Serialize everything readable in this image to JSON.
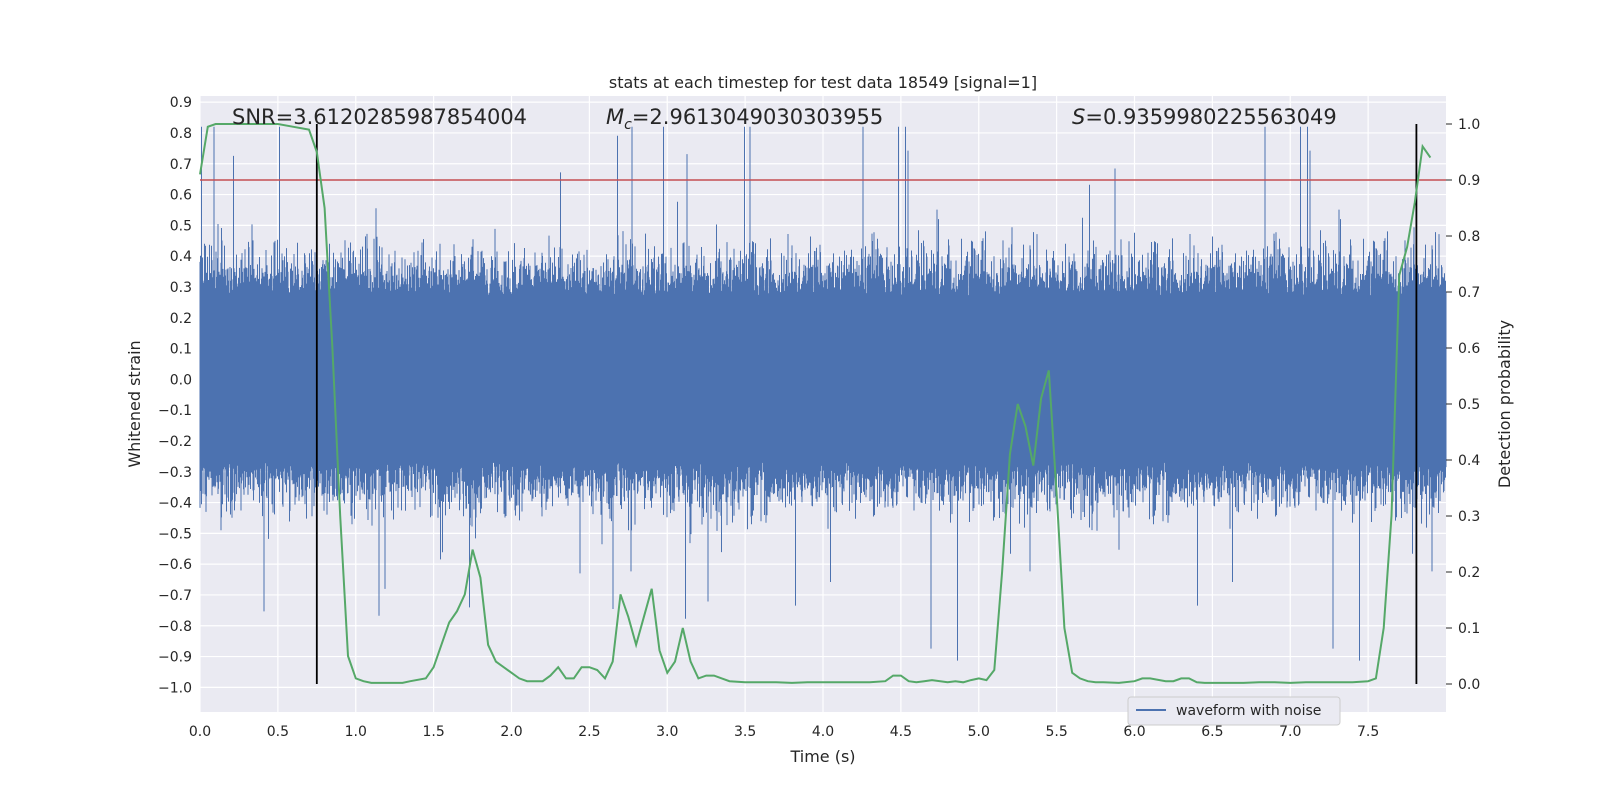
{
  "chart_data": {
    "type": "line",
    "title": "stats at each timestep for test data 18549 [signal=1]",
    "xlabel": "Time (s)",
    "ylabel_left": "Whitened strain",
    "ylabel_right": "Detection probability",
    "xlim": [
      0.0,
      8.0
    ],
    "ylim_left": [
      -1.08,
      0.92
    ],
    "ylim_right": [
      -0.05,
      1.05
    ],
    "xticks": [
      "0.0",
      "0.5",
      "1.0",
      "1.5",
      "2.0",
      "2.5",
      "3.0",
      "3.5",
      "4.0",
      "4.5",
      "5.0",
      "5.5",
      "6.0",
      "6.5",
      "7.0",
      "7.5"
    ],
    "yticks_left": [
      "0.9",
      "0.8",
      "0.7",
      "0.6",
      "0.5",
      "0.4",
      "0.3",
      "0.2",
      "0.1",
      "0.0",
      "−0.1",
      "−0.2",
      "−0.3",
      "−0.4",
      "−0.5",
      "−0.6",
      "−0.7",
      "−0.8",
      "−0.9",
      "−1.0"
    ],
    "yticks_right": [
      "0.0",
      "0.1",
      "0.2",
      "0.3",
      "0.4",
      "0.5",
      "0.6",
      "0.7",
      "0.8",
      "0.9",
      "1.0"
    ],
    "annotations": {
      "snr": "SNR=3.6120285987854004",
      "mc_symbol": "M",
      "mc_subscript": "c",
      "mc_value": "=2.9613049030303955",
      "s_symbol": "S",
      "s_value": "=0.9359980225563049"
    },
    "threshold": 0.9,
    "vlines": [
      0.75,
      7.81
    ],
    "legend": [
      "waveform with noise"
    ],
    "colors": {
      "waveform": "#4c72b0",
      "probability": "#55a868",
      "threshold": "#c44e52",
      "vline": "#000000",
      "background": "#eaeaf2"
    },
    "series": [
      {
        "name": "waveform with noise",
        "axis": "left",
        "envelope_typical": 0.4,
        "bulk": 0.27,
        "peak_max": 0.82,
        "peak_min": -1.0
      },
      {
        "name": "detection probability",
        "axis": "right",
        "x": [
          0.0,
          0.05,
          0.1,
          0.2,
          0.3,
          0.4,
          0.5,
          0.6,
          0.7,
          0.75,
          0.8,
          0.85,
          0.9,
          0.95,
          1.0,
          1.05,
          1.1,
          1.2,
          1.3,
          1.35,
          1.45,
          1.5,
          1.55,
          1.6,
          1.65,
          1.7,
          1.75,
          1.8,
          1.85,
          1.9,
          1.95,
          2.05,
          2.1,
          2.2,
          2.25,
          2.3,
          2.35,
          2.4,
          2.45,
          2.5,
          2.55,
          2.6,
          2.65,
          2.7,
          2.75,
          2.8,
          2.85,
          2.9,
          2.95,
          3.0,
          3.05,
          3.1,
          3.15,
          3.2,
          3.25,
          3.3,
          3.35,
          3.4,
          3.5,
          3.55,
          3.6,
          3.7,
          3.8,
          3.9,
          4.0,
          4.1,
          4.2,
          4.3,
          4.4,
          4.45,
          4.5,
          4.55,
          4.6,
          4.65,
          4.7,
          4.8,
          4.85,
          4.9,
          4.95,
          5.0,
          5.05,
          5.1,
          5.15,
          5.2,
          5.25,
          5.3,
          5.35,
          5.4,
          5.45,
          5.5,
          5.55,
          5.6,
          5.65,
          5.7,
          5.75,
          5.8,
          5.9,
          6.0,
          6.05,
          6.1,
          6.2,
          6.25,
          6.3,
          6.35,
          6.4,
          6.45,
          6.5,
          6.6,
          6.7,
          6.8,
          6.9,
          7.0,
          7.1,
          7.2,
          7.3,
          7.4,
          7.5,
          7.55,
          7.6,
          7.65,
          7.7,
          7.75,
          7.8,
          7.85,
          7.9
        ],
        "y": [
          0.91,
          0.995,
          1.0,
          1.0,
          1.0,
          1.0,
          1.0,
          0.995,
          0.99,
          0.95,
          0.85,
          0.6,
          0.3,
          0.05,
          0.01,
          0.005,
          0.002,
          0.002,
          0.002,
          0.005,
          0.01,
          0.03,
          0.07,
          0.11,
          0.13,
          0.16,
          0.24,
          0.19,
          0.07,
          0.04,
          0.03,
          0.01,
          0.005,
          0.005,
          0.015,
          0.03,
          0.01,
          0.01,
          0.03,
          0.03,
          0.025,
          0.01,
          0.04,
          0.16,
          0.12,
          0.07,
          0.12,
          0.17,
          0.06,
          0.02,
          0.04,
          0.1,
          0.04,
          0.01,
          0.015,
          0.015,
          0.01,
          0.005,
          0.003,
          0.003,
          0.003,
          0.003,
          0.002,
          0.003,
          0.003,
          0.003,
          0.003,
          0.003,
          0.005,
          0.015,
          0.015,
          0.005,
          0.003,
          0.005,
          0.007,
          0.003,
          0.005,
          0.003,
          0.007,
          0.01,
          0.007,
          0.025,
          0.2,
          0.41,
          0.5,
          0.46,
          0.39,
          0.51,
          0.56,
          0.34,
          0.1,
          0.02,
          0.01,
          0.005,
          0.003,
          0.003,
          0.002,
          0.005,
          0.01,
          0.01,
          0.005,
          0.005,
          0.01,
          0.01,
          0.003,
          0.002,
          0.002,
          0.002,
          0.002,
          0.003,
          0.003,
          0.002,
          0.003,
          0.003,
          0.003,
          0.003,
          0.005,
          0.01,
          0.1,
          0.3,
          0.73,
          0.78,
          0.86,
          0.96,
          0.94
        ]
      }
    ]
  }
}
